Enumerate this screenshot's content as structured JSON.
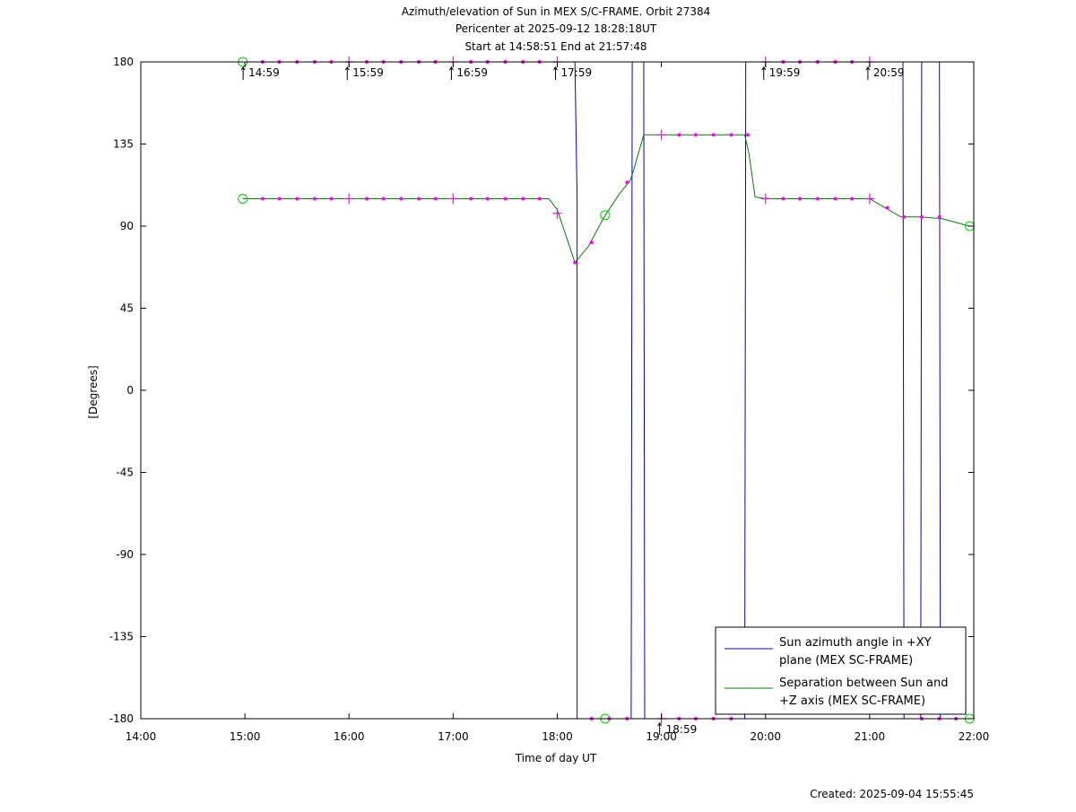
{
  "chart_data": {
    "type": "line",
    "title_lines": [
      "Azimuth/elevation of Sun in MEX S/C-FRAME.  Orbit 27384",
      "Pericenter at 2025-09-12 18:28:18UT",
      "Start at 14:58:51 End at 21:57:48"
    ],
    "xlabel": "Time of day UT",
    "ylabel": "[Degrees]",
    "x_ticks": [
      "14:00",
      "15:00",
      "16:00",
      "17:00",
      "18:00",
      "19:00",
      "20:00",
      "21:00",
      "22:00"
    ],
    "xlim_hours": [
      14,
      22
    ],
    "ylim": [
      -180,
      180
    ],
    "y_ticks": [
      180,
      135,
      90,
      45,
      0,
      -45,
      -90,
      -135,
      -180
    ],
    "grid": false,
    "legend_position": "bottom-right",
    "footer": "Created: 2025-09-04 15:55:45",
    "time_markers": [
      {
        "label": "14:59",
        "x": 14.983,
        "edge": "top"
      },
      {
        "label": "15:59",
        "x": 15.983,
        "edge": "top"
      },
      {
        "label": "16:59",
        "x": 16.983,
        "edge": "top"
      },
      {
        "label": "17:59",
        "x": 17.983,
        "edge": "top"
      },
      {
        "label": "18:59",
        "x": 18.983,
        "edge": "bottom"
      },
      {
        "label": "19:59",
        "x": 19.983,
        "edge": "top"
      },
      {
        "label": "20:59",
        "x": 20.983,
        "edge": "top"
      }
    ],
    "series": [
      {
        "name": "Sun azimuth angle in +XY plane (MEX SC-FRAME)",
        "legend_lines": [
          "Sun azimuth angle in +XY",
          "plane (MEX SC-FRAME)"
        ],
        "color": "#0000cc",
        "x": [
          14.98,
          18.17,
          18.19,
          18.19,
          18.71,
          18.72,
          18.72,
          18.83,
          18.84,
          18.84,
          19.8,
          19.81,
          19.81,
          21.32,
          21.33,
          21.33,
          21.49,
          21.5,
          21.5,
          21.67,
          21.68,
          21.68,
          21.96
        ],
        "y": [
          180,
          180,
          105,
          -180,
          -180,
          180,
          180,
          180,
          -180,
          -180,
          -180,
          180,
          180,
          180,
          -180,
          -180,
          -180,
          180,
          180,
          180,
          -180,
          -180,
          -180
        ]
      },
      {
        "name": "Separation between Sun and +Z axis (MEX SC-FRAME)",
        "legend_lines": [
          "Separation between Sun and",
          "+Z axis (MEX SC-FRAME)"
        ],
        "color": "#008000",
        "x": [
          14.98,
          15.5,
          16.0,
          16.5,
          17.0,
          17.5,
          17.92,
          18.0,
          18.1,
          18.17,
          18.3,
          18.45,
          18.6,
          18.7,
          18.73,
          18.83,
          19.0,
          19.5,
          19.8,
          19.84,
          19.9,
          20.0,
          20.5,
          21.0,
          21.15,
          21.3,
          21.5,
          21.7,
          21.96
        ],
        "y": [
          105,
          105,
          105,
          105,
          105,
          105,
          105,
          99,
          82,
          70,
          79,
          95,
          108,
          115,
          120,
          140,
          140,
          140,
          140,
          130,
          106,
          105,
          105,
          105,
          100,
          95,
          95,
          94,
          90
        ]
      }
    ],
    "markers": {
      "color": "#ff00ff",
      "circle_color": "#00cc00",
      "dots": [
        [
          15.17,
          180
        ],
        [
          15.33,
          180
        ],
        [
          15.5,
          180
        ],
        [
          15.67,
          180
        ],
        [
          15.83,
          180
        ],
        [
          16.17,
          180
        ],
        [
          16.33,
          180
        ],
        [
          16.5,
          180
        ],
        [
          16.67,
          180
        ],
        [
          16.83,
          180
        ],
        [
          17.17,
          180
        ],
        [
          17.33,
          180
        ],
        [
          17.5,
          180
        ],
        [
          17.67,
          180
        ],
        [
          17.83,
          180
        ],
        [
          20.17,
          180
        ],
        [
          20.33,
          180
        ],
        [
          20.5,
          180
        ],
        [
          20.67,
          180
        ],
        [
          20.83,
          180
        ],
        [
          15.17,
          105
        ],
        [
          15.33,
          105
        ],
        [
          15.5,
          105
        ],
        [
          15.67,
          105
        ],
        [
          15.83,
          105
        ],
        [
          16.17,
          105
        ],
        [
          16.33,
          105
        ],
        [
          16.5,
          105
        ],
        [
          16.67,
          105
        ],
        [
          16.83,
          105
        ],
        [
          17.17,
          105
        ],
        [
          17.33,
          105
        ],
        [
          17.5,
          105
        ],
        [
          17.67,
          105
        ],
        [
          17.83,
          105
        ],
        [
          18.17,
          70
        ],
        [
          18.33,
          81
        ],
        [
          18.67,
          114
        ],
        [
          19.17,
          140
        ],
        [
          19.33,
          140
        ],
        [
          19.5,
          140
        ],
        [
          19.67,
          140
        ],
        [
          19.83,
          140
        ],
        [
          20.17,
          105
        ],
        [
          20.33,
          105
        ],
        [
          20.5,
          105
        ],
        [
          20.67,
          105
        ],
        [
          20.83,
          105
        ],
        [
          21.17,
          100
        ],
        [
          21.33,
          95
        ],
        [
          21.5,
          95
        ],
        [
          21.67,
          95
        ],
        [
          18.33,
          -180
        ],
        [
          18.5,
          -180
        ],
        [
          18.67,
          -180
        ],
        [
          19.17,
          -180
        ],
        [
          19.33,
          -180
        ],
        [
          19.5,
          -180
        ],
        [
          19.67,
          -180
        ],
        [
          21.5,
          -180
        ],
        [
          21.67,
          -180
        ],
        [
          21.83,
          -180
        ]
      ],
      "crosses": [
        [
          16.0,
          180
        ],
        [
          17.0,
          180
        ],
        [
          18.0,
          180
        ],
        [
          20.0,
          180
        ],
        [
          21.0,
          180
        ],
        [
          16.0,
          105
        ],
        [
          17.0,
          105
        ],
        [
          18.0,
          97
        ],
        [
          19.0,
          140
        ],
        [
          20.0,
          105
        ],
        [
          21.0,
          105
        ],
        [
          19.0,
          -180
        ]
      ],
      "circles": [
        [
          14.98,
          180
        ],
        [
          14.98,
          105
        ],
        [
          18.46,
          96
        ],
        [
          18.46,
          -180
        ],
        [
          21.96,
          90
        ],
        [
          21.96,
          -180
        ]
      ]
    }
  }
}
